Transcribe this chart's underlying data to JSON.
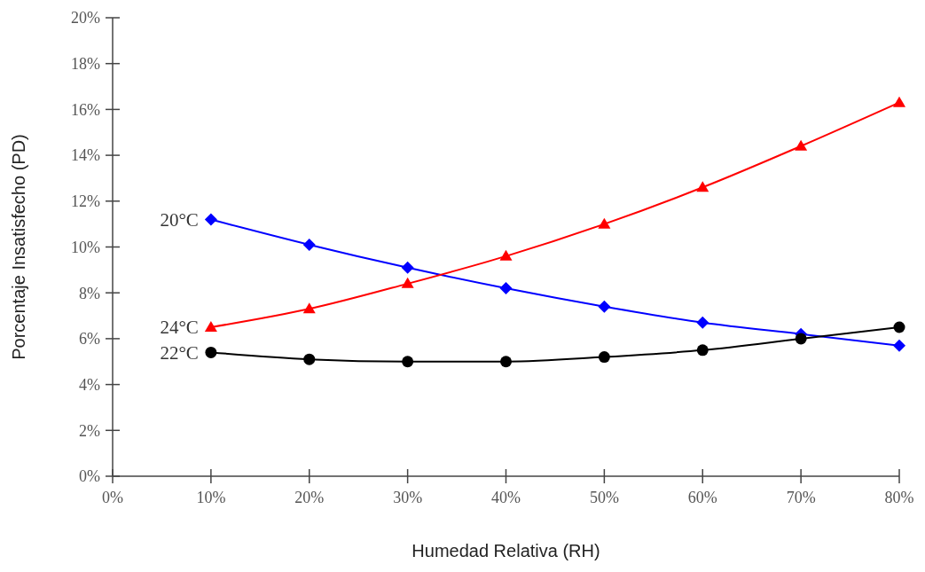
{
  "chart_data": {
    "type": "line",
    "xlabel": "Humedad Relativa (RH)",
    "ylabel": "Porcentaje Insatisfecho (PD)",
    "x": [
      10,
      20,
      30,
      40,
      50,
      60,
      70,
      80
    ],
    "series": [
      {
        "name": "20°C",
        "color": "#0000ff",
        "marker": "diamond",
        "values": [
          11.2,
          10.1,
          9.1,
          8.2,
          7.4,
          6.7,
          6.2,
          5.7
        ]
      },
      {
        "name": "24°C",
        "color": "#ff0000",
        "marker": "triangle",
        "values": [
          6.5,
          7.3,
          8.4,
          9.6,
          11.0,
          12.6,
          14.4,
          16.3
        ]
      },
      {
        "name": "22°C",
        "color": "#000000",
        "marker": "circle",
        "values": [
          5.4,
          5.1,
          5.0,
          5.0,
          5.2,
          5.5,
          6.0,
          6.5
        ]
      }
    ],
    "xlim": [
      0,
      80
    ],
    "ylim": [
      0,
      20
    ],
    "xticks": [
      {
        "value": 0,
        "label": "0%"
      },
      {
        "value": 10,
        "label": "10%"
      },
      {
        "value": 20,
        "label": "20%"
      },
      {
        "value": 30,
        "label": "30%"
      },
      {
        "value": 40,
        "label": "40%"
      },
      {
        "value": 50,
        "label": "50%"
      },
      {
        "value": 60,
        "label": "60%"
      },
      {
        "value": 70,
        "label": "70%"
      },
      {
        "value": 80,
        "label": "80%"
      }
    ],
    "yticks": [
      {
        "value": 0,
        "label": "0%"
      },
      {
        "value": 2,
        "label": "2%"
      },
      {
        "value": 4,
        "label": "4%"
      },
      {
        "value": 6,
        "label": "6%"
      },
      {
        "value": 8,
        "label": "8%"
      },
      {
        "value": 10,
        "label": "10%"
      },
      {
        "value": 12,
        "label": "12%"
      },
      {
        "value": 14,
        "label": "14%"
      },
      {
        "value": 16,
        "label": "16%"
      },
      {
        "value": 18,
        "label": "18%"
      },
      {
        "value": 20,
        "label": "20%"
      }
    ],
    "grid": false,
    "legend": false,
    "line_style": "solid"
  }
}
